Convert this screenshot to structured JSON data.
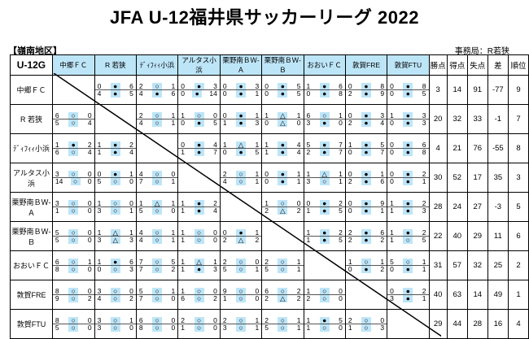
{
  "title": "JFA U-12福井県サッカーリーグ 2022",
  "region": "【嶺南地区】",
  "office": "事務局：R若狭",
  "corner_label": "U-12G",
  "teams": [
    "中郷ＦＣ",
    "R 若狭",
    "ﾃﾞｨﾌｨｨ小浜",
    "アルタス小浜",
    "栗野南ＢＷ-Ａ",
    "栗野南ＢＷ-Ｂ",
    "おおいＦＣ",
    "敦賀FRE",
    "敦賀FTU"
  ],
  "row_teams": [
    "中郷ＦＣ",
    "R 若狭",
    "ﾃﾞｨﾌｨｨ小浜",
    "アルタス小浜",
    "栗野南ＢＷ-Ａ",
    "栗野南ＢＷ-Ｂ",
    "おおいＦＣ",
    "敦賀FRE",
    "敦賀FTU"
  ],
  "stat_headers": [
    "勝点",
    "得点",
    "失点",
    "差",
    "順位"
  ],
  "standings": [
    [
      "3",
      "14",
      "91",
      "-77",
      "9"
    ],
    [
      "20",
      "32",
      "33",
      "-1",
      "7"
    ],
    [
      "4",
      "21",
      "76",
      "-55",
      "8"
    ],
    [
      "30",
      "52",
      "17",
      "35",
      "3"
    ],
    [
      "28",
      "24",
      "27",
      "-3",
      "5"
    ],
    [
      "22",
      "40",
      "29",
      "11",
      "6"
    ],
    [
      "31",
      "57",
      "32",
      "25",
      "2"
    ],
    [
      "40",
      "63",
      "14",
      "49",
      "1"
    ],
    [
      "29",
      "44",
      "28",
      "16",
      "4"
    ]
  ],
  "results": [
    [
      null,
      [
        [
          "0",
          "●",
          "6"
        ],
        [
          "4",
          "●",
          "5"
        ]
      ],
      [
        [
          "2",
          "○",
          "1"
        ],
        [
          "4",
          "●",
          "6"
        ]
      ],
      [
        [
          "0",
          "●",
          "3"
        ],
        [
          "0",
          "●",
          "14"
        ]
      ],
      [
        [
          "0",
          "●",
          "3"
        ],
        [
          "0",
          "●",
          "1"
        ]
      ],
      [
        [
          "0",
          "●",
          "5"
        ],
        [
          "0",
          "●",
          "5"
        ]
      ],
      [
        [
          "1",
          "●",
          "6"
        ],
        [
          "0",
          "●",
          "8"
        ]
      ],
      [
        [
          "0",
          "●",
          "8"
        ],
        [
          "2",
          "●",
          "9"
        ]
      ],
      [
        [
          "0",
          "●",
          "8"
        ],
        [
          "0",
          "●",
          "5"
        ]
      ]
    ],
    [
      [
        [
          "6",
          "○",
          "0"
        ],
        [
          "5",
          "○",
          "4"
        ]
      ],
      null,
      [
        [
          "2",
          "○",
          "1"
        ],
        [
          "4",
          "○",
          "1"
        ]
      ],
      [
        [
          "1",
          "○",
          "0"
        ],
        [
          "0",
          "●",
          "5"
        ]
      ],
      [
        [
          "0",
          "●",
          "1"
        ],
        [
          "1",
          "●",
          "3"
        ]
      ],
      [
        [
          "1",
          "△",
          "1"
        ],
        [
          "0",
          "△",
          "0"
        ]
      ],
      [
        [
          "6",
          "○",
          "1"
        ],
        [
          "3",
          "●",
          "0"
        ]
      ],
      [
        [
          "0",
          "●",
          "3"
        ],
        [
          "2",
          "●",
          "4"
        ]
      ],
      [
        [
          "1",
          "●",
          "3"
        ],
        [
          "0",
          "●",
          "3"
        ]
      ]
    ],
    [
      [
        [
          "1",
          "●",
          "2"
        ],
        [
          "6",
          "○",
          "4"
        ]
      ],
      [
        [
          "1",
          "●",
          "2"
        ],
        [
          "1",
          "●",
          "4"
        ]
      ],
      null,
      [
        [
          "0",
          "●",
          "4"
        ],
        [
          "1",
          "●",
          "7"
        ]
      ],
      [
        [
          "1",
          "△",
          "1"
        ],
        [
          "0",
          "●",
          "5"
        ]
      ],
      [
        [
          "1",
          "●",
          "4"
        ],
        [
          "1",
          "●",
          "4"
        ]
      ],
      [
        [
          "5",
          "●",
          "7"
        ],
        [
          "2",
          "●",
          "7"
        ]
      ],
      [
        [
          "1",
          "●",
          "5"
        ],
        [
          "0",
          "●",
          "7"
        ]
      ],
      [
        [
          "0",
          "●",
          "6"
        ],
        [
          "0",
          "●",
          "8"
        ]
      ]
    ],
    [
      [
        [
          "3",
          "○",
          "0"
        ],
        [
          "14",
          "○",
          "0"
        ]
      ],
      [
        [
          "0",
          "●",
          "1"
        ],
        [
          "5",
          "○",
          "0"
        ]
      ],
      [
        [
          "4",
          "○",
          "0"
        ],
        [
          "7",
          "○",
          "1"
        ]
      ],
      null,
      [
        [
          "2",
          "○",
          "1"
        ],
        [
          "4",
          "○",
          "1"
        ]
      ],
      [
        [
          "0",
          "●",
          "1"
        ],
        [
          "0",
          "●",
          "1"
        ]
      ],
      [
        [
          "1",
          "△",
          "1"
        ],
        [
          "3",
          "○",
          "1"
        ]
      ],
      [
        [
          "0",
          "●",
          "1"
        ],
        [
          "2",
          "●",
          "6"
        ]
      ],
      [
        [
          "0",
          "●",
          "2"
        ],
        [
          "0",
          "●",
          "1"
        ]
      ]
    ],
    [
      [
        [
          "3",
          "○",
          "0"
        ],
        [
          "1",
          "○",
          "0"
        ]
      ],
      [
        [
          "1",
          "○",
          "0"
        ],
        [
          "3",
          "○",
          "1"
        ]
      ],
      [
        [
          "1",
          "△",
          "1"
        ],
        [
          "5",
          "○",
          "0"
        ]
      ],
      [
        [
          "1",
          "●",
          "2"
        ],
        [
          "1",
          "●",
          "4"
        ]
      ],
      null,
      [
        [
          "1",
          "○",
          "0"
        ],
        [
          "2",
          "△",
          "2"
        ]
      ],
      [
        [
          "0",
          "●",
          "2"
        ],
        [
          "1",
          "●",
          "5"
        ]
      ],
      [
        [
          "0",
          "●",
          "9"
        ],
        [
          "0",
          "●",
          "1"
        ]
      ],
      [
        [
          "1",
          "●",
          "2"
        ],
        [
          "1",
          "●",
          "3"
        ]
      ]
    ],
    [
      [
        [
          "5",
          "○",
          "0"
        ],
        [
          "5",
          "○",
          "0"
        ]
      ],
      [
        [
          "1",
          "△",
          "1"
        ],
        [
          "3",
          "△",
          "3"
        ]
      ],
      [
        [
          "4",
          "○",
          "1"
        ],
        [
          "4",
          "○",
          "1"
        ]
      ],
      [
        [
          "1",
          "○",
          "0"
        ],
        [
          "1",
          "○",
          "0"
        ]
      ],
      [
        [
          "0",
          "●",
          "1"
        ],
        [
          "2",
          "△",
          "2"
        ]
      ],
      null,
      [
        [
          "1",
          "●",
          "2"
        ],
        [
          "1",
          "●",
          "5"
        ]
      ],
      [
        [
          "2",
          "●",
          "6"
        ],
        [
          "2",
          "●",
          "2"
        ]
      ],
      [
        [
          "1",
          "●",
          "2"
        ],
        [
          "1",
          "○",
          "5"
        ]
      ]
    ],
    [
      [
        [
          "6",
          "○",
          "1"
        ],
        [
          "8",
          "○",
          "0"
        ]
      ],
      [
        [
          "1",
          "●",
          "6"
        ],
        [
          "0",
          "○",
          "3"
        ]
      ],
      [
        [
          "7",
          "○",
          "5"
        ],
        [
          "7",
          "○",
          "2"
        ]
      ],
      [
        [
          "1",
          "△",
          "1"
        ],
        [
          "1",
          "●",
          "3"
        ]
      ],
      [
        [
          "2",
          "○",
          "0"
        ],
        [
          "5",
          "○",
          "1"
        ]
      ],
      [
        [
          "2",
          "○",
          "1"
        ],
        [
          "5",
          "○",
          "1"
        ]
      ],
      null,
      [
        [
          "1",
          "○",
          "1"
        ],
        [
          "0",
          "●",
          "2"
        ]
      ],
      [
        [
          "5",
          "○",
          "1"
        ],
        [
          "0",
          "●",
          "1"
        ]
      ]
    ],
    [
      [
        [
          "8",
          "○",
          "0"
        ],
        [
          "9",
          "○",
          "2"
        ]
      ],
      [
        [
          "3",
          "○",
          "0"
        ],
        [
          "4",
          "○",
          "2"
        ]
      ],
      [
        [
          "5",
          "○",
          "1"
        ],
        [
          "7",
          "○",
          "0"
        ]
      ],
      [
        [
          "1",
          "○",
          "0"
        ],
        [
          "6",
          "○",
          "2"
        ]
      ],
      [
        [
          "9",
          "○",
          "0"
        ],
        [
          "1",
          "○",
          "0"
        ]
      ],
      [
        [
          "6",
          "○",
          "2"
        ],
        [
          "2",
          "△",
          "2"
        ]
      ],
      [
        [
          "1",
          "○",
          "0"
        ],
        [
          "2",
          "○",
          "0"
        ]
      ],
      null,
      [
        [
          "0",
          "●",
          "2"
        ],
        [
          "3",
          "●",
          "1"
        ]
      ]
    ],
    [
      [
        [
          "8",
          "○",
          "0"
        ],
        [
          "5",
          "○",
          "0"
        ]
      ],
      [
        [
          "3",
          "○",
          "1"
        ],
        [
          "3",
          "○",
          "0"
        ]
      ],
      [
        [
          "6",
          "○",
          "0"
        ],
        [
          "8",
          "○",
          "0"
        ]
      ],
      [
        [
          "2",
          "○",
          "0"
        ],
        [
          "1",
          "○",
          "0"
        ]
      ],
      [
        [
          "2",
          "○",
          "1"
        ],
        [
          "3",
          "○",
          "1"
        ]
      ],
      [
        [
          "2",
          "○",
          "1"
        ],
        [
          "5",
          "○",
          "1"
        ]
      ],
      [
        [
          "1",
          "●",
          "5"
        ],
        [
          "1",
          "○",
          "0"
        ]
      ],
      [
        [
          "2",
          "○",
          "0"
        ],
        [
          "1",
          "○",
          "3"
        ]
      ],
      null
    ]
  ]
}
